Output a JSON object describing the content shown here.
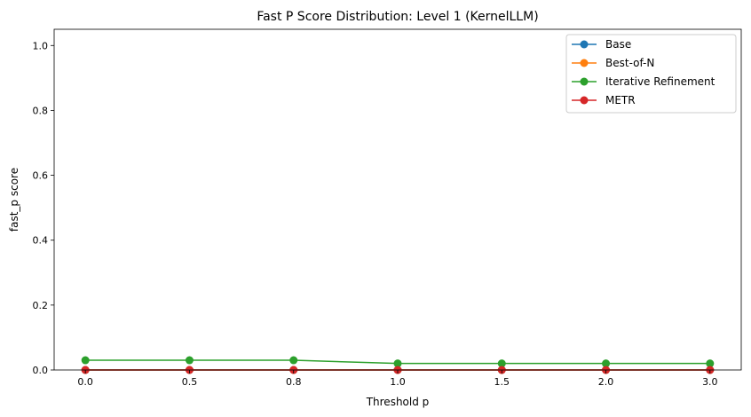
{
  "chart_data": {
    "type": "line",
    "title": "Fast P Score Distribution: Level 1 (KernelLLM)",
    "xlabel": "Threshold p",
    "ylabel": "fast_p score",
    "categories": [
      "0.0",
      "0.5",
      "0.8",
      "1.0",
      "1.5",
      "2.0",
      "3.0"
    ],
    "ylim": [
      0,
      1.05
    ],
    "yticks": [
      "0.0",
      "0.2",
      "0.4",
      "0.6",
      "0.8",
      "1.0"
    ],
    "grid": false,
    "legend_position": "top-right",
    "series": [
      {
        "name": "Base",
        "color": "#1f77b4",
        "values": [
          0,
          0,
          0,
          0,
          0,
          0,
          0
        ]
      },
      {
        "name": "Best-of-N",
        "color": "#ff7f0e",
        "values": [
          0,
          0,
          0,
          0,
          0,
          0,
          0
        ]
      },
      {
        "name": "Iterative Refinement",
        "color": "#2ca02c",
        "values": [
          0.03,
          0.03,
          0.03,
          0.02,
          0.02,
          0.02,
          0.02
        ]
      },
      {
        "name": "METR",
        "color": "#d62728",
        "values": [
          0,
          0,
          0,
          0,
          0,
          0,
          0
        ]
      }
    ]
  }
}
